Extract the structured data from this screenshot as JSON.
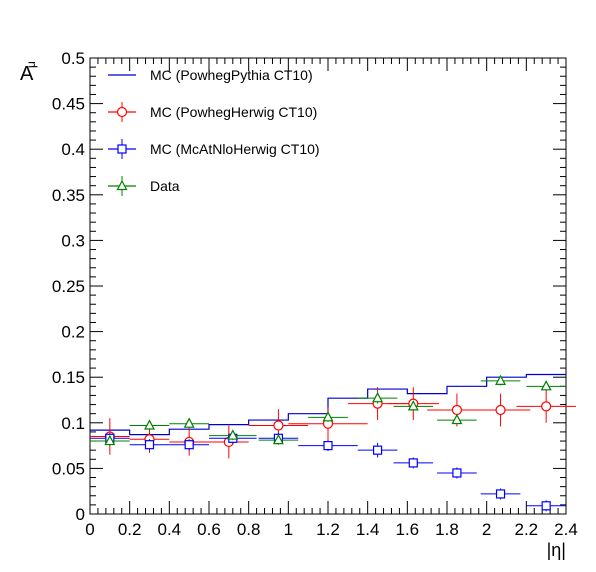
{
  "chart_data": {
    "type": "scatter",
    "title": "",
    "xlabel": "|η|",
    "ylabel": "A",
    "ylabel_sub": "μ",
    "xlim": [
      0,
      2.4
    ],
    "ylim": [
      0,
      0.5
    ],
    "x_ticks": [
      "0",
      "0.2",
      "0.4",
      "0.6",
      "0.8",
      "1",
      "1.2",
      "1.4",
      "1.6",
      "1.8",
      "2",
      "2.2",
      "2.4"
    ],
    "y_ticks": [
      "0",
      "0.05",
      "0.1",
      "0.15",
      "0.2",
      "0.25",
      "0.3",
      "0.35",
      "0.4",
      "0.45",
      "0.5"
    ],
    "legend_position": "top-left",
    "grid": false,
    "bin_edges": [
      0,
      0.2,
      0.4,
      0.6,
      0.8,
      1.0,
      1.2,
      1.4,
      1.6,
      1.8,
      2.0,
      2.2,
      2.4
    ],
    "series": [
      {
        "name": "MC (PowhegPythia CT10)",
        "style": "step",
        "color": "#0000cc",
        "values": [
          0.092,
          0.087,
          0.093,
          0.098,
          0.103,
          0.11,
          0.127,
          0.137,
          0.132,
          0.14,
          0.15,
          0.153
        ]
      },
      {
        "name": "MC (PowhegHerwig CT10)",
        "style": "open-circle",
        "color": "#ff0000",
        "points": [
          {
            "x": 0.1,
            "y": 0.085,
            "xerr": 0.1,
            "yerr": 0.02
          },
          {
            "x": 0.3,
            "y": 0.082,
            "xerr": 0.1,
            "yerr": 0.015
          },
          {
            "x": 0.5,
            "y": 0.079,
            "xerr": 0.1,
            "yerr": 0.015
          },
          {
            "x": 0.7,
            "y": 0.079,
            "xerr": 0.1,
            "yerr": 0.018
          },
          {
            "x": 0.95,
            "y": 0.097,
            "xerr": 0.15,
            "yerr": 0.018
          },
          {
            "x": 1.2,
            "y": 0.099,
            "xerr": 0.2,
            "yerr": 0.018
          },
          {
            "x": 1.45,
            "y": 0.121,
            "xerr": 0.15,
            "yerr": 0.018
          },
          {
            "x": 1.63,
            "y": 0.121,
            "xerr": 0.13,
            "yerr": 0.018
          },
          {
            "x": 1.85,
            "y": 0.114,
            "xerr": 0.15,
            "yerr": 0.018
          },
          {
            "x": 2.07,
            "y": 0.114,
            "xerr": 0.15,
            "yerr": 0.018
          },
          {
            "x": 2.3,
            "y": 0.118,
            "xerr": 0.15,
            "yerr": 0.018
          }
        ]
      },
      {
        "name": "MC (McAtNloHerwig CT10)",
        "style": "open-square",
        "color": "#0000ff",
        "points": [
          {
            "x": 0.1,
            "y": 0.083,
            "xerr": 0.1,
            "yerr": 0.006
          },
          {
            "x": 0.3,
            "y": 0.076,
            "xerr": 0.1,
            "yerr": 0.006
          },
          {
            "x": 0.5,
            "y": 0.076,
            "xerr": 0.1,
            "yerr": 0.006
          },
          {
            "x": 0.72,
            "y": 0.083,
            "xerr": 0.12,
            "yerr": 0.006
          },
          {
            "x": 0.95,
            "y": 0.083,
            "xerr": 0.1,
            "yerr": 0.006
          },
          {
            "x": 1.2,
            "y": 0.075,
            "xerr": 0.15,
            "yerr": 0.006
          },
          {
            "x": 1.45,
            "y": 0.07,
            "xerr": 0.1,
            "yerr": 0.008
          },
          {
            "x": 1.63,
            "y": 0.056,
            "xerr": 0.1,
            "yerr": 0.006
          },
          {
            "x": 1.85,
            "y": 0.045,
            "xerr": 0.1,
            "yerr": 0.006
          },
          {
            "x": 2.07,
            "y": 0.022,
            "xerr": 0.1,
            "yerr": 0.006
          },
          {
            "x": 2.3,
            "y": 0.009,
            "xerr": 0.1,
            "yerr": 0.006
          }
        ]
      },
      {
        "name": "Data",
        "style": "open-triangle",
        "color": "#008000",
        "points": [
          {
            "x": 0.1,
            "y": 0.08,
            "xerr": 0.1,
            "yerr": 0.005
          },
          {
            "x": 0.3,
            "y": 0.097,
            "xerr": 0.1,
            "yerr": 0.005
          },
          {
            "x": 0.5,
            "y": 0.099,
            "xerr": 0.1,
            "yerr": 0.005
          },
          {
            "x": 0.72,
            "y": 0.086,
            "xerr": 0.12,
            "yerr": 0.005
          },
          {
            "x": 0.95,
            "y": 0.081,
            "xerr": 0.1,
            "yerr": 0.005
          },
          {
            "x": 1.2,
            "y": 0.106,
            "xerr": 0.1,
            "yerr": 0.005
          },
          {
            "x": 1.45,
            "y": 0.127,
            "xerr": 0.1,
            "yerr": 0.006
          },
          {
            "x": 1.63,
            "y": 0.118,
            "xerr": 0.1,
            "yerr": 0.005
          },
          {
            "x": 1.85,
            "y": 0.103,
            "xerr": 0.1,
            "yerr": 0.005
          },
          {
            "x": 2.07,
            "y": 0.146,
            "xerr": 0.1,
            "yerr": 0.005
          },
          {
            "x": 2.3,
            "y": 0.14,
            "xerr": 0.1,
            "yerr": 0.005
          }
        ]
      }
    ]
  }
}
